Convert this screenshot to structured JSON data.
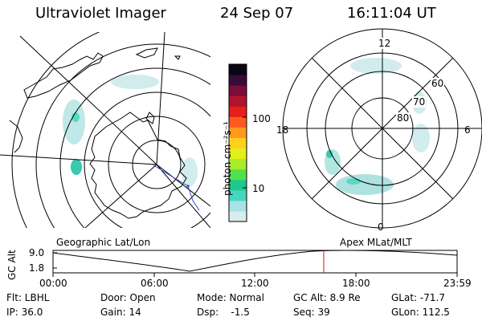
{
  "header": {
    "instrument": "Ultraviolet Imager",
    "date": "24 Sep 07",
    "time": "16:11:04 UT"
  },
  "colorbar": {
    "unit_label": "photon cm⁻²s⁻¹",
    "ticks": [
      "100",
      "10"
    ],
    "colors": [
      "#d8eded",
      "#a8e2e2",
      "#44d6c0",
      "#1ec98c",
      "#53e04a",
      "#a8ec2a",
      "#e2f01a",
      "#ffd11e",
      "#ff9a1e",
      "#ff5a1e",
      "#e61e1e",
      "#b0142c",
      "#7a0e3a",
      "#3a0a3a",
      "#0a0514"
    ]
  },
  "left_map": {
    "label": "Geographic Lat/Lon"
  },
  "right_map": {
    "label": "Apex MLat/MLT",
    "mlt_labels": {
      "top": "12",
      "left": "18",
      "right": "6",
      "bottom": "0"
    },
    "lat_labels": [
      "60",
      "70",
      "80"
    ]
  },
  "altitude_plot": {
    "axis_title": "GC Alt",
    "y_ticks": [
      "9.0",
      "1.8"
    ],
    "x_ticks": [
      "00:00",
      "06:00",
      "12:00",
      "18:00",
      "23:59"
    ]
  },
  "info": {
    "flt": "Flt: LBHL",
    "door": "Door: Open",
    "mode": "Mode: Normal",
    "gc_alt": "GC Alt: 8.9 Re",
    "glat": "GLat: -71.7",
    "ip": "IP: 36.0",
    "gain": "Gain: 14",
    "dsp": "Dsp:    -1.5",
    "seq": "Seq: 39",
    "glon": "GLon: 112.5"
  }
}
